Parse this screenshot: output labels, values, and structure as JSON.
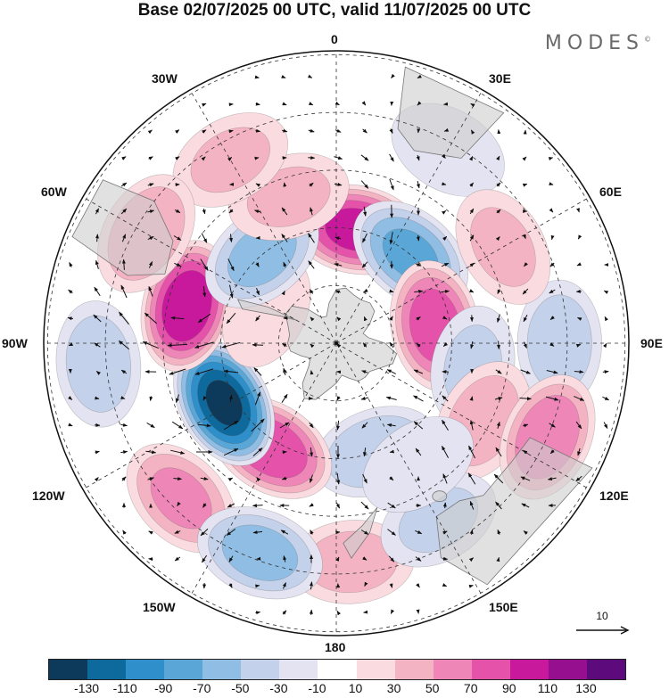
{
  "title": "Base 02/07/2025 00 UTC, valid 11/07/2025 00 UTC",
  "brand": "MODES",
  "brand_mark": "©",
  "longitude_labels": {
    "lon_0": "0",
    "lon_30e": "30E",
    "lon_60e": "60E",
    "lon_90e": "90E",
    "lon_120e": "120E",
    "lon_150e": "150E",
    "lon_180": "180",
    "lon_150w": "150W",
    "lon_120w": "120W",
    "lon_90w": "90W",
    "lon_60w": "60W",
    "lon_30w": "30W"
  },
  "vector_reference": {
    "label": "10"
  },
  "colorbar": {
    "colors": [
      "#0d3a5a",
      "#0e6a9c",
      "#2f8fca",
      "#5aa6d6",
      "#8fbde3",
      "#c3d1ea",
      "#e4e3f1",
      "#ffffff",
      "#f9dbe0",
      "#f4b3c3",
      "#ee86b7",
      "#e452aa",
      "#c8199c",
      "#960f8e",
      "#5c0a7c"
    ],
    "tick_labels": [
      "-130",
      "-110",
      "-90",
      "-70",
      "-50",
      "-30",
      "-10",
      "10",
      "30",
      "50",
      "70",
      "90",
      "110",
      "130"
    ]
  },
  "anomaly_centers": [
    {
      "lon": 10,
      "colat": 30,
      "value": 95
    },
    {
      "lon": 40,
      "colat": 30,
      "value": -70
    },
    {
      "lon": 80,
      "colat": 26,
      "value": 80
    },
    {
      "lon": 100,
      "colat": 36,
      "value": -30
    },
    {
      "lon": 90,
      "colat": 58,
      "value": -40
    },
    {
      "lon": 118,
      "colat": 43,
      "value": 40
    },
    {
      "lon": 114,
      "colat": 60,
      "value": 65
    },
    {
      "lon": 160,
      "colat": 30,
      "value": -45
    },
    {
      "lon": 176,
      "colat": 57,
      "value": 35
    },
    {
      "lon": 150,
      "colat": 53,
      "value": -30
    },
    {
      "lon": 146,
      "colat": 38,
      "value": -25
    },
    {
      "lon": -148,
      "colat": 32,
      "value": 85
    },
    {
      "lon": -118,
      "colat": 33,
      "value": -130
    },
    {
      "lon": -76,
      "colat": 40,
      "value": 105
    },
    {
      "lon": -65,
      "colat": 20,
      "value": 20
    },
    {
      "lon": -40,
      "colat": 30,
      "value": -55
    },
    {
      "lon": -18,
      "colat": 40,
      "value": 30
    },
    {
      "lon": -30,
      "colat": 55,
      "value": 30
    },
    {
      "lon": -60,
      "colat": 57,
      "value": 45
    },
    {
      "lon": -95,
      "colat": 62,
      "value": -40
    },
    {
      "lon": -135,
      "colat": 57,
      "value": 50
    },
    {
      "lon": -160,
      "colat": 58,
      "value": -55
    },
    {
      "lon": 30,
      "colat": 58,
      "value": -25
    },
    {
      "lon": 60,
      "colat": 50,
      "value": 30
    }
  ]
}
